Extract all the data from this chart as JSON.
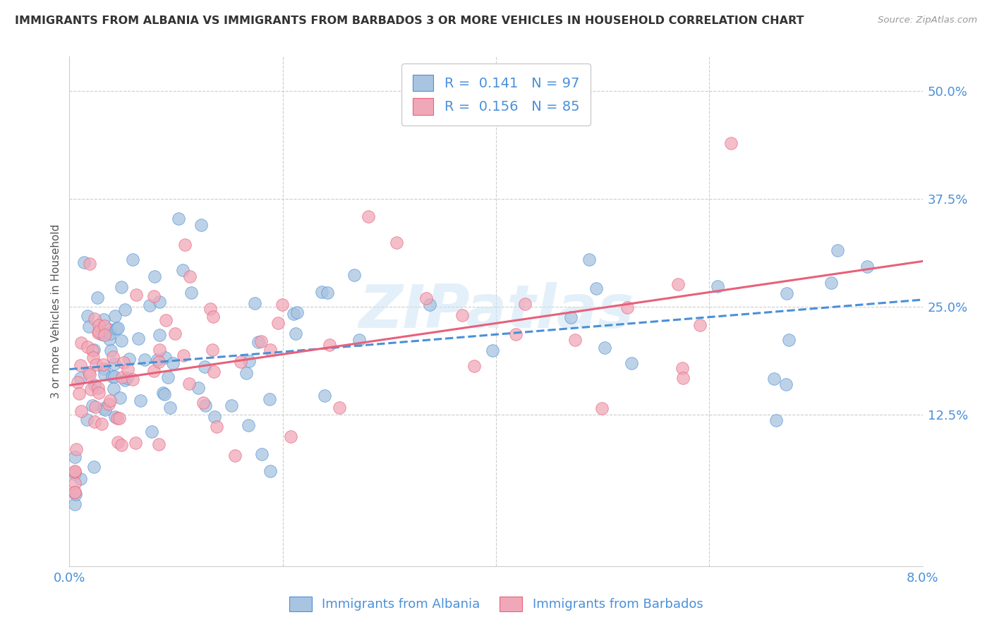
{
  "title": "IMMIGRANTS FROM ALBANIA VS IMMIGRANTS FROM BARBADOS 3 OR MORE VEHICLES IN HOUSEHOLD CORRELATION CHART",
  "source": "Source: ZipAtlas.com",
  "ylabel": "3 or more Vehicles in Household",
  "ytick_labels": [
    "12.5%",
    "25.0%",
    "37.5%",
    "50.0%"
  ],
  "ytick_values": [
    0.125,
    0.25,
    0.375,
    0.5
  ],
  "xmin": 0.0,
  "xmax": 0.08,
  "ymin": -0.05,
  "ymax": 0.54,
  "albania_color": "#a8c4e0",
  "barbados_color": "#f0a8b8",
  "albania_R": 0.141,
  "albania_N": 97,
  "barbados_R": 0.156,
  "barbados_N": 85,
  "watermark": "ZIPatlas",
  "legend_label_albania": "Immigrants from Albania",
  "legend_label_barbados": "Immigrants from Barbados",
  "albania_line_color": "#4a90d9",
  "barbados_line_color": "#e8607a",
  "grid_color": "#cccccc",
  "background_color": "#ffffff",
  "label_color": "#4a90d9",
  "text_color": "#333333"
}
